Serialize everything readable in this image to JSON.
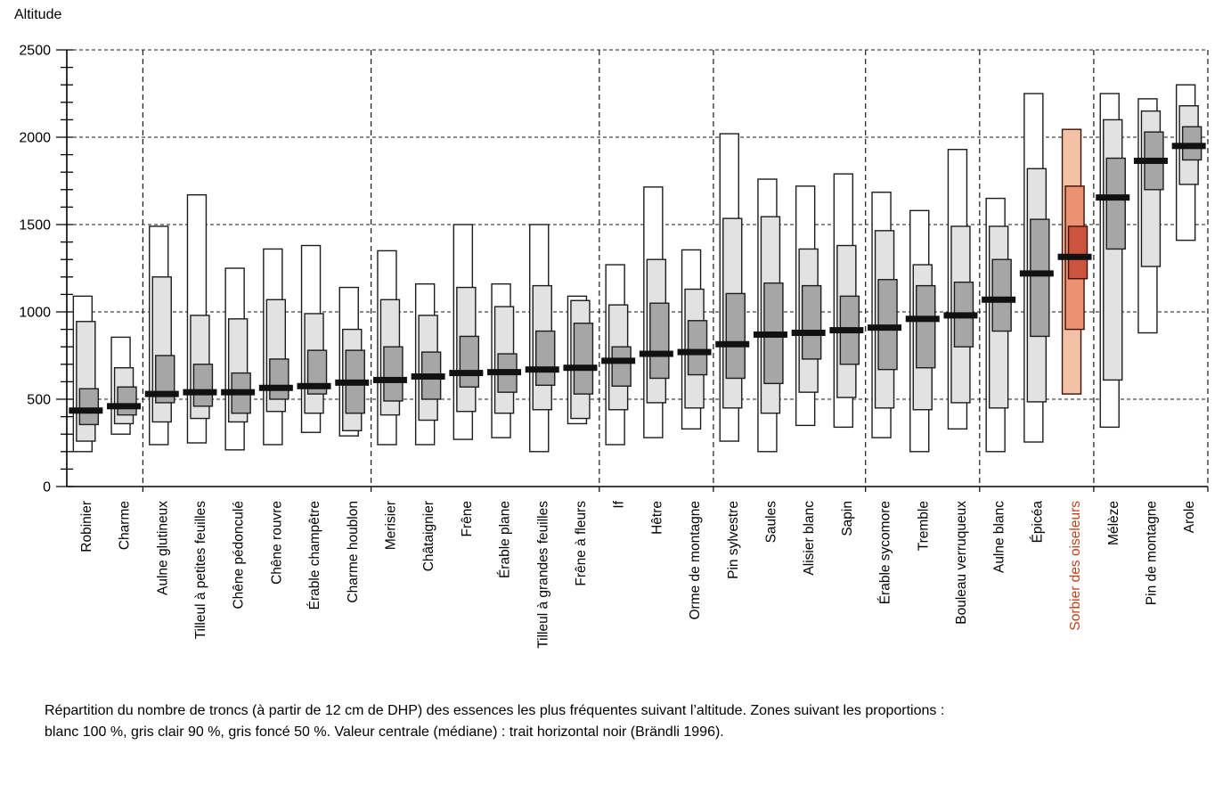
{
  "title": "Altitude",
  "caption": {
    "line1": "Répartition du nombre de troncs (à partir de 12 cm de DHP) des essences les plus fréquentes suivant l’altitude. Zones suivant les proportions :",
    "line2": "blanc 100 %, gris clair 90 %, gris foncé 50 %. Valeur centrale (médiane) : trait horizontal noir (Brändli 1996)."
  },
  "colors": {
    "background": "#ffffff",
    "text": "#000000",
    "grid": "#1a1a1a",
    "axis": "#000000",
    "box_outline": "#1c1c1c",
    "zone_100": "#ffffff",
    "zone_90": "#e2e2e2",
    "zone_50": "#a6a6a6",
    "median": "#111111",
    "highlight_zone_100": "#f3c1a6",
    "highlight_zone_90": "#ec9171",
    "highlight_zone_50": "#cc5340",
    "highlight_outline": "#3a1208",
    "highlight_label": "#c4401a"
  },
  "chart_data": {
    "type": "range-boxplot",
    "title": "Altitude",
    "ylabel": "Altitude",
    "xlabel": "",
    "ylim": [
      0,
      2500
    ],
    "yticks": [
      0,
      500,
      1000,
      1500,
      2000,
      2500
    ],
    "minor_tick_step": 100,
    "grid": "dashed-horizontal-at-major-ticks",
    "legend_note": "blanc 100 %, gris clair 90 %, gris foncé 50 %, médiane = trait horizontal noir",
    "group_sizes": [
      2,
      6,
      6,
      3,
      4,
      3,
      3,
      3
    ],
    "species": [
      {
        "name": "Robinier",
        "range100": [
          200,
          1090
        ],
        "range90": [
          260,
          945
        ],
        "range50": [
          355,
          560
        ],
        "median": 435,
        "highlight": false
      },
      {
        "name": "Charme",
        "range100": [
          300,
          855
        ],
        "range90": [
          360,
          680
        ],
        "range50": [
          410,
          570
        ],
        "median": 460,
        "highlight": false
      },
      {
        "name": "Aulne glutineux",
        "range100": [
          240,
          1490
        ],
        "range90": [
          370,
          1200
        ],
        "range50": [
          480,
          750
        ],
        "median": 530,
        "highlight": false
      },
      {
        "name": "Tilleul à petites feuilles",
        "range100": [
          250,
          1670
        ],
        "range90": [
          390,
          980
        ],
        "range50": [
          460,
          700
        ],
        "median": 540,
        "highlight": false
      },
      {
        "name": "Chêne pédonculé",
        "range100": [
          210,
          1250
        ],
        "range90": [
          370,
          960
        ],
        "range50": [
          420,
          650
        ],
        "median": 540,
        "highlight": false
      },
      {
        "name": "Chêne rouvre",
        "range100": [
          240,
          1360
        ],
        "range90": [
          430,
          1070
        ],
        "range50": [
          500,
          730
        ],
        "median": 565,
        "highlight": false
      },
      {
        "name": "Érable champêtre",
        "range100": [
          310,
          1380
        ],
        "range90": [
          420,
          990
        ],
        "range50": [
          530,
          780
        ],
        "median": 575,
        "highlight": false
      },
      {
        "name": "Charme houblon",
        "range100": [
          290,
          1140
        ],
        "range90": [
          320,
          900
        ],
        "range50": [
          420,
          780
        ],
        "median": 595,
        "highlight": false
      },
      {
        "name": "Merisier",
        "range100": [
          240,
          1350
        ],
        "range90": [
          410,
          1070
        ],
        "range50": [
          490,
          800
        ],
        "median": 610,
        "highlight": false
      },
      {
        "name": "Châtaignier",
        "range100": [
          240,
          1160
        ],
        "range90": [
          380,
          980
        ],
        "range50": [
          500,
          770
        ],
        "median": 630,
        "highlight": false
      },
      {
        "name": "Frêne",
        "range100": [
          270,
          1500
        ],
        "range90": [
          430,
          1140
        ],
        "range50": [
          570,
          860
        ],
        "median": 650,
        "highlight": false
      },
      {
        "name": "Érable plane",
        "range100": [
          280,
          1160
        ],
        "range90": [
          420,
          1030
        ],
        "range50": [
          540,
          760
        ],
        "median": 655,
        "highlight": false
      },
      {
        "name": "Tilleul à grandes feuilles",
        "range100": [
          200,
          1500
        ],
        "range90": [
          440,
          1150
        ],
        "range50": [
          580,
          890
        ],
        "median": 670,
        "highlight": false
      },
      {
        "name": "Frêne à fleurs",
        "range100": [
          360,
          1090
        ],
        "range90": [
          390,
          1065
        ],
        "range50": [
          530,
          935
        ],
        "median": 680,
        "highlight": false
      },
      {
        "name": "If",
        "range100": [
          240,
          1270
        ],
        "range90": [
          440,
          1040
        ],
        "range50": [
          575,
          800
        ],
        "median": 720,
        "highlight": false
      },
      {
        "name": "Hêtre",
        "range100": [
          280,
          1715
        ],
        "range90": [
          480,
          1300
        ],
        "range50": [
          620,
          1050
        ],
        "median": 760,
        "highlight": false
      },
      {
        "name": "Orme de montagne",
        "range100": [
          330,
          1355
        ],
        "range90": [
          450,
          1130
        ],
        "range50": [
          640,
          950
        ],
        "median": 770,
        "highlight": false
      },
      {
        "name": "Pin sylvestre",
        "range100": [
          260,
          2020
        ],
        "range90": [
          450,
          1535
        ],
        "range50": [
          620,
          1105
        ],
        "median": 815,
        "highlight": false
      },
      {
        "name": "Saules",
        "range100": [
          200,
          1760
        ],
        "range90": [
          420,
          1545
        ],
        "range50": [
          590,
          1165
        ],
        "median": 870,
        "highlight": false
      },
      {
        "name": "Alisier blanc",
        "range100": [
          350,
          1720
        ],
        "range90": [
          540,
          1360
        ],
        "range50": [
          730,
          1150
        ],
        "median": 880,
        "highlight": false
      },
      {
        "name": "Sapin",
        "range100": [
          340,
          1790
        ],
        "range90": [
          510,
          1380
        ],
        "range50": [
          700,
          1090
        ],
        "median": 895,
        "highlight": false
      },
      {
        "name": "Érable sycomore",
        "range100": [
          280,
          1685
        ],
        "range90": [
          450,
          1465
        ],
        "range50": [
          670,
          1185
        ],
        "median": 910,
        "highlight": false
      },
      {
        "name": "Tremble",
        "range100": [
          200,
          1580
        ],
        "range90": [
          440,
          1270
        ],
        "range50": [
          680,
          1150
        ],
        "median": 960,
        "highlight": false
      },
      {
        "name": "Bouleau verruqueux",
        "range100": [
          330,
          1930
        ],
        "range90": [
          480,
          1490
        ],
        "range50": [
          800,
          1170
        ],
        "median": 980,
        "highlight": false
      },
      {
        "name": "Aulne blanc",
        "range100": [
          200,
          1650
        ],
        "range90": [
          450,
          1490
        ],
        "range50": [
          890,
          1300
        ],
        "median": 1070,
        "highlight": false
      },
      {
        "name": "Épicéa",
        "range100": [
          255,
          2250
        ],
        "range90": [
          485,
          1820
        ],
        "range50": [
          860,
          1530
        ],
        "median": 1220,
        "highlight": false
      },
      {
        "name": "Sorbier des oiseleurs",
        "range100": [
          530,
          2045
        ],
        "range90": [
          900,
          1720
        ],
        "range50": [
          1190,
          1490
        ],
        "median": 1315,
        "highlight": true
      },
      {
        "name": "Mélèze",
        "range100": [
          340,
          2250
        ],
        "range90": [
          610,
          2100
        ],
        "range50": [
          1360,
          1880
        ],
        "median": 1655,
        "highlight": false
      },
      {
        "name": "Pin de montagne",
        "range100": [
          880,
          2220
        ],
        "range90": [
          1260,
          2150
        ],
        "range50": [
          1700,
          2030
        ],
        "median": 1865,
        "highlight": false
      },
      {
        "name": "Arole",
        "range100": [
          1410,
          2300
        ],
        "range90": [
          1730,
          2180
        ],
        "range50": [
          1870,
          2060
        ],
        "median": 1950,
        "highlight": false
      }
    ]
  }
}
